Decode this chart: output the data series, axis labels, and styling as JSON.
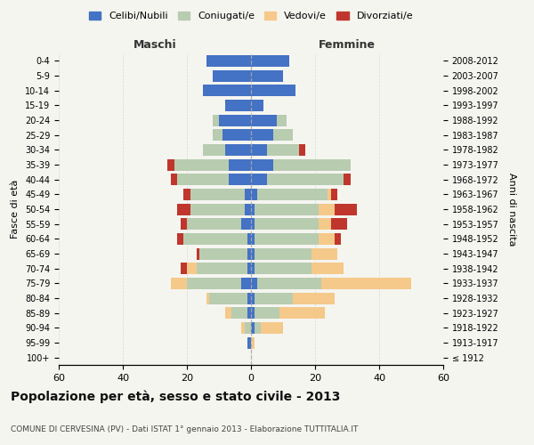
{
  "age_groups": [
    "100+",
    "95-99",
    "90-94",
    "85-89",
    "80-84",
    "75-79",
    "70-74",
    "65-69",
    "60-64",
    "55-59",
    "50-54",
    "45-49",
    "40-44",
    "35-39",
    "30-34",
    "25-29",
    "20-24",
    "15-19",
    "10-14",
    "5-9",
    "0-4"
  ],
  "birth_years": [
    "≤ 1912",
    "1913-1917",
    "1918-1922",
    "1923-1927",
    "1928-1932",
    "1933-1937",
    "1938-1942",
    "1943-1947",
    "1948-1952",
    "1953-1957",
    "1958-1962",
    "1963-1967",
    "1968-1972",
    "1973-1977",
    "1978-1982",
    "1983-1987",
    "1988-1992",
    "1993-1997",
    "1998-2002",
    "2003-2007",
    "2008-2012"
  ],
  "male": {
    "celibi": [
      0,
      1,
      0,
      1,
      1,
      3,
      1,
      1,
      1,
      3,
      2,
      2,
      7,
      7,
      8,
      9,
      10,
      8,
      15,
      12,
      14
    ],
    "coniugati": [
      0,
      0,
      2,
      5,
      12,
      17,
      16,
      15,
      20,
      17,
      17,
      17,
      16,
      17,
      7,
      3,
      2,
      0,
      0,
      0,
      0
    ],
    "vedovi": [
      0,
      0,
      1,
      2,
      1,
      5,
      3,
      0,
      0,
      0,
      0,
      0,
      0,
      0,
      0,
      0,
      0,
      0,
      0,
      0,
      0
    ],
    "divorziati": [
      0,
      0,
      0,
      0,
      0,
      0,
      2,
      1,
      2,
      2,
      4,
      2,
      2,
      2,
      0,
      0,
      0,
      0,
      0,
      0,
      0
    ]
  },
  "female": {
    "nubili": [
      0,
      0,
      1,
      1,
      1,
      2,
      1,
      1,
      1,
      1,
      1,
      2,
      5,
      7,
      5,
      7,
      8,
      4,
      14,
      10,
      12
    ],
    "coniugate": [
      0,
      0,
      2,
      8,
      12,
      20,
      18,
      18,
      20,
      20,
      20,
      22,
      24,
      24,
      10,
      6,
      3,
      0,
      0,
      0,
      0
    ],
    "vedove": [
      0,
      1,
      7,
      14,
      13,
      28,
      10,
      8,
      5,
      4,
      5,
      1,
      0,
      0,
      0,
      0,
      0,
      0,
      0,
      0,
      0
    ],
    "divorziate": [
      0,
      0,
      0,
      0,
      0,
      0,
      0,
      0,
      2,
      5,
      7,
      2,
      2,
      0,
      2,
      0,
      0,
      0,
      0,
      0,
      0
    ]
  },
  "colors": {
    "celibi": "#4472C4",
    "coniugati": "#B8CCB0",
    "vedovi": "#F5C98A",
    "divorziati": "#C0362C"
  },
  "xlim": 60,
  "title": "Popolazione per età, sesso e stato civile - 2013",
  "subtitle": "COMUNE DI CERVESINA (PV) - Dati ISTAT 1° gennaio 2013 - Elaborazione TUTTITALIA.IT",
  "ylabel_left": "Fasce di età",
  "ylabel_right": "Anni di nascita",
  "xlabel_left": "Maschi",
  "xlabel_right": "Femmine",
  "legend_labels": [
    "Celibi/Nubili",
    "Coniugati/e",
    "Vedovi/e",
    "Divorziati/e"
  ],
  "bg_color": "#f5f5f0"
}
